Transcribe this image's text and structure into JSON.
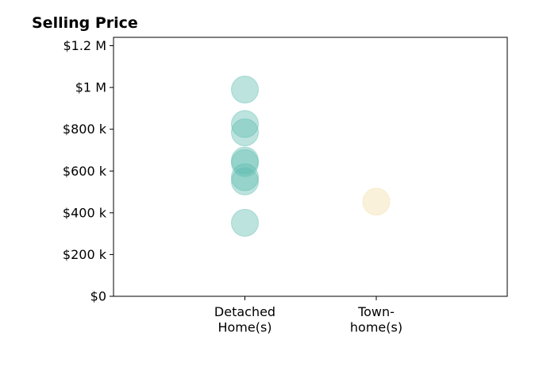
{
  "chart_data": {
    "type": "scatter",
    "title": "Selling Price",
    "xlabel": "",
    "ylabel": "",
    "categories": [
      [
        "Detached",
        "Home(s)"
      ],
      [
        "Town-",
        "home(s)"
      ]
    ],
    "ylim": [
      0,
      1240000
    ],
    "y_ticks": [
      {
        "value": 0,
        "label": "$0"
      },
      {
        "value": 200000,
        "label": "$200 k"
      },
      {
        "value": 400000,
        "label": "$400 k"
      },
      {
        "value": 600000,
        "label": "$600 k"
      },
      {
        "value": 800000,
        "label": "$800 k"
      },
      {
        "value": 1000000,
        "label": "$1 M"
      },
      {
        "value": 1200000,
        "label": "$1.2 M"
      }
    ],
    "grid": false,
    "legend": "none",
    "series": [
      {
        "category_index": 0,
        "color": "#5fbcb0",
        "values": [
          990000,
          825000,
          785000,
          650000,
          638000,
          570000,
          550000,
          352000
        ]
      },
      {
        "category_index": 1,
        "color": "#f2dda8",
        "values": [
          453000
        ]
      }
    ]
  }
}
